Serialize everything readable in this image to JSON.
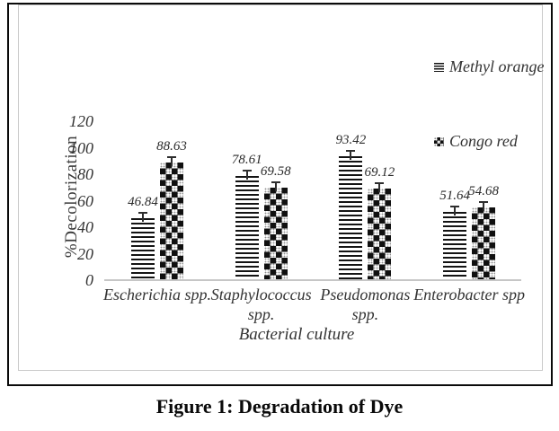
{
  "figure": {
    "caption": "Figure 1: Degradation of Dye"
  },
  "colors": {
    "bar_ink": "#141414",
    "axis_line": "#c6c6c6",
    "error_bar": "#2e2e2e",
    "frame_border": "#0a0a0a",
    "plot_border": "#c9c9c9"
  },
  "chart_data": {
    "type": "bar",
    "title": "",
    "categories": [
      "Escherichia spp.",
      "Staphylococcus\nspp.",
      "Pseudomonas\nspp.",
      "Enterobacter spp"
    ],
    "series": [
      {
        "name": "Methyl orange",
        "pattern": "horizontal-stripes",
        "values": [
          46.84,
          78.61,
          93.42,
          51.64
        ]
      },
      {
        "name": "Congo red",
        "pattern": "checker",
        "values": [
          88.63,
          69.58,
          69.12,
          54.68
        ]
      }
    ],
    "xlabel": "Bacterial culture",
    "ylabel": "%Decolorization",
    "ylim": [
      0,
      120
    ],
    "yticks": [
      0,
      20,
      40,
      60,
      80,
      100,
      120
    ],
    "error_bars": true,
    "data_labels": true,
    "legend_position": "right",
    "grid": false
  }
}
